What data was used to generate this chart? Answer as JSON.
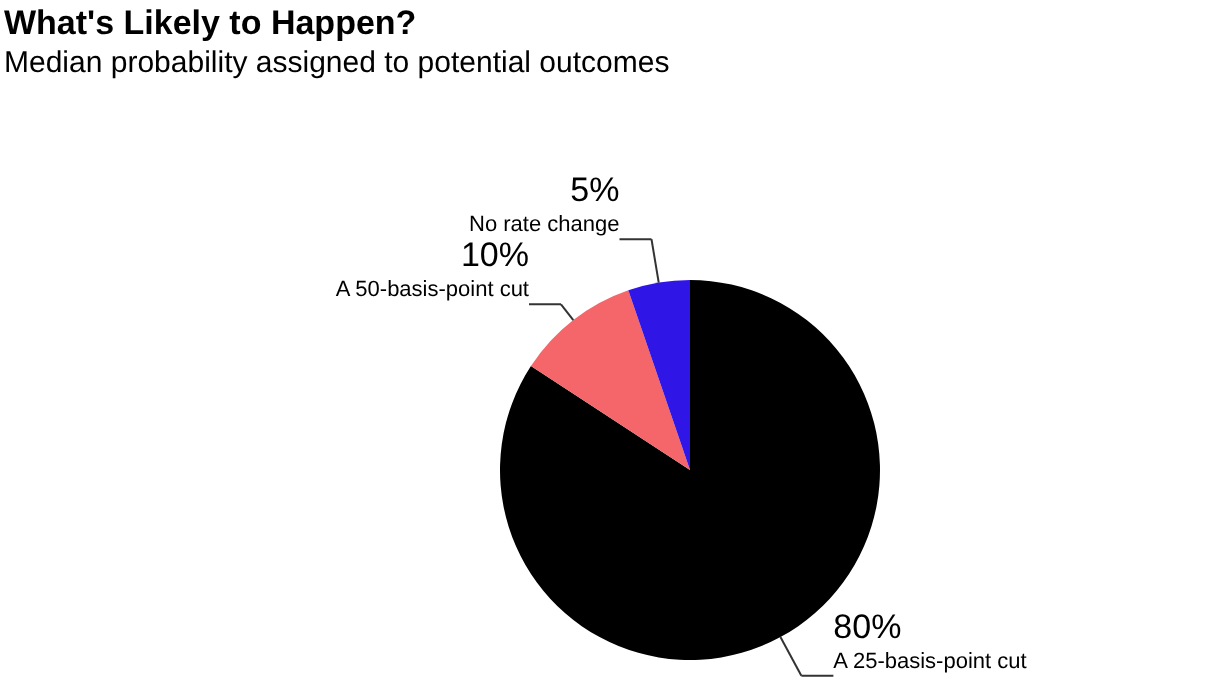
{
  "chart_data": {
    "type": "pie",
    "title": "What's Likely to Happen?",
    "subtitle": "Median probability assigned to potential outcomes",
    "categories": [
      "A 25-basis-point cut",
      "A 50-basis-point cut",
      "No rate change"
    ],
    "values": [
      80,
      10,
      5
    ],
    "value_labels": [
      "80%",
      "10%",
      "5%"
    ],
    "colors": [
      "#000000",
      "#f4666a",
      "#2f16e6"
    ],
    "legend": false
  }
}
